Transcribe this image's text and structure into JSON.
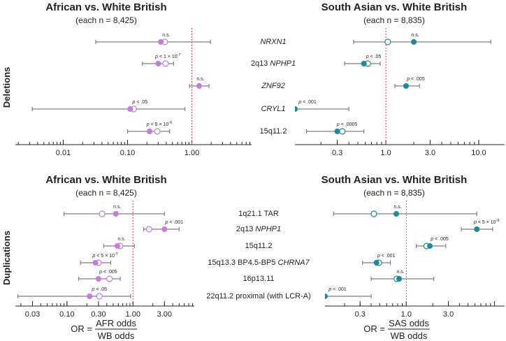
{
  "row_labels": {
    "deletions": "Deletions",
    "duplications": "Duplications"
  },
  "formulas": {
    "afr": {
      "lhs": "OR =",
      "numerator": "AFR odds",
      "denominator": "WB odds"
    },
    "sas": {
      "lhs": "OR =",
      "numerator": "SAS odds",
      "denominator": "WB odds"
    }
  },
  "colors": {
    "afr": "#c77be0",
    "sas": "#1b8a9c",
    "ci": "#7f7f7f",
    "reference_line": "#e8464f"
  },
  "deletion_labels": [
    {
      "text": "NRXN1",
      "italic": true
    },
    {
      "prefix": "2q13 ",
      "text": "NPHP1",
      "italic": true
    },
    {
      "text": "ZNF92",
      "italic": true
    },
    {
      "text": "CRYL1",
      "italic": true
    },
    {
      "text": "15q11.2",
      "italic": false
    }
  ],
  "duplication_labels": [
    {
      "text": "1q21.1 TAR",
      "italic": false
    },
    {
      "prefix": "2q13 ",
      "text": "NPHP1",
      "italic": true
    },
    {
      "text": "15q11.2",
      "italic": false
    },
    {
      "prefix": "15q13.3 BP4.5-BP5 ",
      "text": "CHRNA7",
      "italic": true
    },
    {
      "text": "16p13.11",
      "italic": false
    },
    {
      "text": "22q11.2 proximal (with LCR-A)",
      "italic": false
    }
  ],
  "chart_data": [
    {
      "id": "afr-del",
      "type": "forest",
      "title": "African vs. White British",
      "subtitle": "(each n = 8,425)",
      "scale": "log",
      "xlim": [
        0.0018,
        8.5
      ],
      "xticks": [
        0.01,
        0.1,
        1.0
      ],
      "xtick_labels": [
        "0.01",
        "0.10",
        "1.00"
      ],
      "reference": 1,
      "color_key": "afr",
      "points": [
        {
          "cnv": "NRXN1",
          "or": 0.33,
          "or_open": 0.38,
          "ci": [
            0.032,
            1.95
          ],
          "p": "n.s."
        },
        {
          "cnv": "2q13 NPHP1",
          "or": 0.3,
          "or_open": 0.39,
          "ci": [
            0.17,
            0.52
          ],
          "p": "p < 1 × 10^-7"
        },
        {
          "cnv": "ZNF92",
          "or": 1.3,
          "or_open": null,
          "ci": [
            0.92,
            1.85
          ],
          "p": "n.s."
        },
        {
          "cnv": "CRYL1",
          "or": 0.11,
          "or_open": 0.125,
          "ci": [
            0.0033,
            0.78
          ],
          "p": "p < .05"
        },
        {
          "cnv": "15q11.2",
          "or": 0.22,
          "or_open": 0.29,
          "ci": [
            0.1,
            0.45
          ],
          "p": "p < 5 × 10^-6"
        }
      ]
    },
    {
      "id": "sas-del",
      "type": "forest",
      "title": "South Asian vs. White British",
      "subtitle": "(each n = 8,835)",
      "scale": "log",
      "xlim": [
        0.105,
        19
      ],
      "xticks": [
        0.3,
        1.0,
        3.0,
        10.0
      ],
      "xtick_labels": [
        "0.3",
        "1.0",
        "3.0",
        "10.0"
      ],
      "reference": 1,
      "color_key": "sas",
      "points": [
        {
          "cnv": "NRXN1",
          "or": 2.0,
          "or_open": 1.05,
          "ci": [
            0.45,
            13.5
          ],
          "p": "n.s."
        },
        {
          "cnv": "2q13 NPHP1",
          "or": 0.58,
          "or_open": 0.64,
          "ci": [
            0.36,
            0.87
          ],
          "p": "p < .05"
        },
        {
          "cnv": "ZNF92",
          "or": 1.65,
          "or_open": null,
          "ci": [
            1.25,
            2.3
          ],
          "p": "p < .005"
        },
        {
          "cnv": "CRYL1",
          "or": 0.105,
          "or_open": null,
          "ci": [
            0.105,
            0.4
          ],
          "p": "p < .001"
        },
        {
          "cnv": "15q11.2",
          "or": 0.3,
          "or_open": 0.34,
          "ci": [
            0.14,
            0.58
          ],
          "p": "p < .0005"
        }
      ]
    },
    {
      "id": "afr-dup",
      "type": "forest",
      "title": "African vs. White British",
      "subtitle": "(each n = 8,425)",
      "scale": "log",
      "xlim": [
        0.0165,
        8.5
      ],
      "xticks": [
        0.03,
        0.1,
        0.3,
        1.0,
        3.0
      ],
      "xtick_labels": [
        "0.03",
        "0.10",
        "0.30",
        "1.00",
        "3.00"
      ],
      "reference": 1,
      "color_key": "afr",
      "points": [
        {
          "cnv": "1q21.1 TAR",
          "or": 0.55,
          "or_open": 0.34,
          "ci": [
            0.09,
            3.0
          ],
          "p": "n.s."
        },
        {
          "cnv": "2q13 NPHP1",
          "or": 3.0,
          "or_open": 1.75,
          "ci": [
            1.45,
            5.0
          ],
          "p": "p < .001"
        },
        {
          "cnv": "15q11.2",
          "or": 0.58,
          "or_open": 0.64,
          "ci": [
            0.36,
            1.05
          ],
          "p": "n.s."
        },
        {
          "cnv": "15q13.3 BP4.5-BP5 CHRNA7",
          "or": 0.27,
          "or_open": 0.3,
          "ci": [
            0.16,
            0.46
          ],
          "p": "p < 5 × 10^-7"
        },
        {
          "cnv": "16p13.11",
          "or": 0.3,
          "or_open": 0.44,
          "ci": [
            0.15,
            0.64
          ],
          "p": "p < .005"
        },
        {
          "cnv": "22q11.2 proximal (with LCR-A)",
          "or": 0.22,
          "or_open": 0.31,
          "ci": [
            0.018,
            0.92
          ],
          "p": "p < .05"
        }
      ]
    },
    {
      "id": "sas-dup",
      "type": "forest",
      "title": "South Asian vs. White British",
      "subtitle": "(each n = 8,835)",
      "scale": "log",
      "xlim": [
        0.12,
        13
      ],
      "xticks": [
        0.3,
        1.0,
        3.0
      ],
      "xtick_labels": [
        "0.3",
        "1.0",
        "3.0"
      ],
      "reference": 1,
      "color_key": "sas",
      "points": [
        {
          "cnv": "1q21.1 TAR",
          "or": 0.77,
          "or_open": 0.43,
          "ci": [
            0.15,
            6.3
          ],
          "p": "n.s."
        },
        {
          "cnv": "2q13 NPHP1",
          "or": 6.3,
          "or_open": null,
          "ci": [
            4.2,
            9.5
          ],
          "p": "p < 5 × 10^-9"
        },
        {
          "cnv": "15q11.2",
          "or": 1.85,
          "or_open": 1.7,
          "ci": [
            1.3,
            2.8
          ],
          "p": "p < .005"
        },
        {
          "cnv": "15q13.3 BP4.5-BP5 CHRNA7",
          "or": 0.46,
          "or_open": 0.49,
          "ci": [
            0.32,
            0.66
          ],
          "p": "p < .001"
        },
        {
          "cnv": "16p13.11",
          "or": 0.83,
          "or_open": 0.78,
          "ci": [
            0.4,
            2.05
          ],
          "p": "n.s."
        },
        {
          "cnv": "22q11.2 proximal (with LCR-A)",
          "or": 0.12,
          "or_open": null,
          "ci": [
            0.12,
            0.4
          ],
          "p": "p < .001"
        }
      ]
    }
  ]
}
